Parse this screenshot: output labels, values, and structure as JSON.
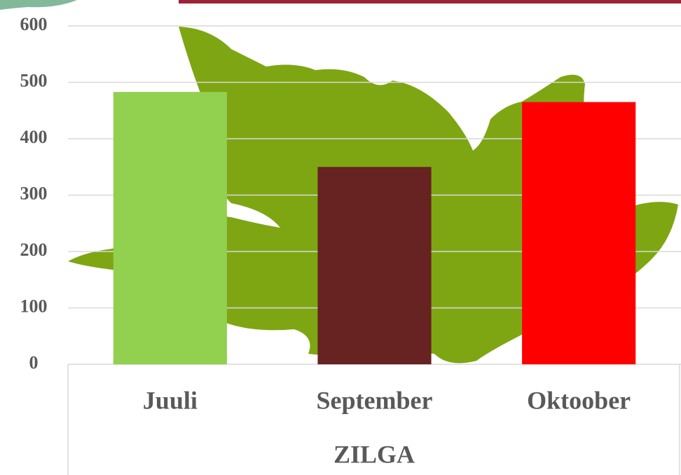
{
  "chart_data": {
    "type": "bar",
    "x_label": "ZILGA",
    "categories": [
      "Juuli",
      "September",
      "Oktoober"
    ],
    "values": [
      483,
      350,
      465
    ],
    "colors": [
      "#92d050",
      "#672222",
      "#ff0000"
    ],
    "ylim": [
      0,
      600
    ],
    "yticks": [
      0,
      100,
      200,
      300,
      400,
      500,
      600
    ],
    "grid": true
  }
}
